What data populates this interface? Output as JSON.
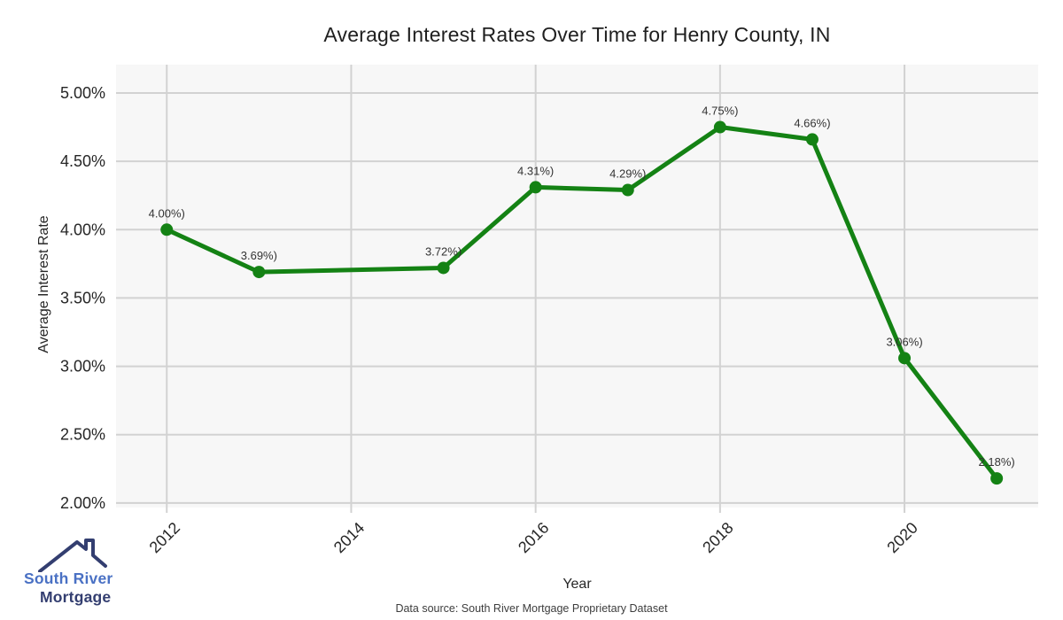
{
  "title": "Average Interest Rates Over Time for Henry County, IN",
  "footer": {
    "source": "Data source: South River Mortgage Proprietary Dataset"
  },
  "logo": {
    "line1": "South River",
    "line2": "Mortgage",
    "text_color1": "#4a71c4",
    "text_color2": "#333e70",
    "icon_color": "#333e70",
    "icon": "house-roof-with-chimney"
  },
  "chart_data": {
    "type": "line",
    "title": "Average Interest Rates Over Time for Henry County, IN",
    "xlabel": "Year",
    "ylabel": "Average Interest Rate",
    "x": [
      2012,
      2013,
      2015,
      2016,
      2017,
      2018,
      2019,
      2020,
      2021
    ],
    "values": [
      4.0,
      3.69,
      3.72,
      4.31,
      4.29,
      4.75,
      4.66,
      3.06,
      2.18
    ],
    "point_labels": [
      "4.00%)",
      "3.69%)",
      "3.72%)",
      "4.31%)",
      "4.29%)",
      "4.75%)",
      "4.66%)",
      "3.06%)",
      "2.18%)"
    ],
    "x_ticks": [
      2012,
      2014,
      2016,
      2018,
      2020
    ],
    "y_ticks": [
      "5.00%",
      "4.50%",
      "4.00%",
      "3.50%",
      "3.00%",
      "2.50%",
      "2.00%"
    ],
    "y_tick_values": [
      5.0,
      4.5,
      4.0,
      3.5,
      3.0,
      2.5,
      2.0
    ],
    "xlim": [
      2011.45,
      2021.45
    ],
    "ylim": [
      1.967,
      5.207
    ],
    "grid": true,
    "legend": "none",
    "line_color": "#148214",
    "marker_color": "#148214",
    "plot_bg_color": "#f7f7f7",
    "grid_color": "#d2d2d2",
    "tick_label_color": "#262626",
    "point_label_color": "#333333"
  }
}
